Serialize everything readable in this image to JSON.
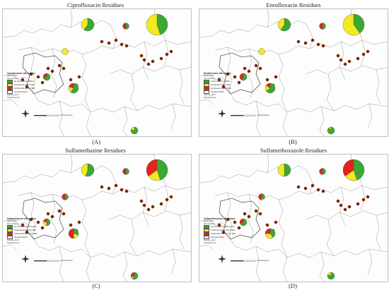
{
  "panels": [
    {
      "title": "Ciprofloxacin Residues",
      "letter": "(A)",
      "legend": {
        "heading": "Ciprofloxacine AB residue",
        "sub1": "Noyel Admin",
        "sub2": "Sum of Points",
        "items": [
          "No Ciprofloxacin residue",
          "Ciprofloxacin below MRL",
          "Ciprofloxacin at over MRL",
          "Sampled District"
        ],
        "sub3": "LatLong_point",
        "sub4": "Total demo pint"
      },
      "scale_label": "6 Kilometers"
    },
    {
      "title": "Enrofloxacin Residues",
      "letter": "(B)",
      "legend": {
        "heading": "Enrofloxacine AB residue",
        "sub1": "Noyel Admin",
        "sub2": "Sum of Points",
        "items": [
          "No Enrofloxacin residue",
          "Enrofloxacin below MRL",
          "Enrofloxacin at over MRL",
          "Sampled District"
        ],
        "sub3": "LatLong_point",
        "sub4": "Total demo pint"
      },
      "scale_label": "6 Kilometers"
    },
    {
      "title": "Sulfamethazine Residues",
      "letter": "(C)",
      "legend": {
        "heading": "Sulfamethazine AB residue",
        "sub1": "Noyel Admin",
        "sub2": "Sum of Points",
        "items": [
          "No Sulfamethazine residue",
          "Sulfamethazine below MRL",
          "Sulfamethazine at over MRL",
          "Sampled District"
        ],
        "sub3": "LatLong_point",
        "sub4": "Total demo pint"
      },
      "scale_label": "6 Kilometers"
    },
    {
      "title": "Sulfamethoxazole Residues",
      "letter": "(D)",
      "legend": {
        "heading": "Sulfamethoxazole AB residue",
        "sub1": "Noyel Admin",
        "sub2": "Sum of Points",
        "items": [
          "No Sulfamethoxazole residue",
          "Sulfamethoxazole below MRL",
          "Sulfamethoxazole at over MRL",
          "Sampled District"
        ],
        "sub3": "LatLong_point",
        "sub4": "Total demo pint"
      },
      "scale_label": "6 Kilometers"
    }
  ],
  "colors": {
    "no_residue": "#3aa832",
    "below_mrl": "#f2ea1d",
    "over_mrl": "#e8211b",
    "district": "#ffffff",
    "point": "#6b1f0f"
  }
}
